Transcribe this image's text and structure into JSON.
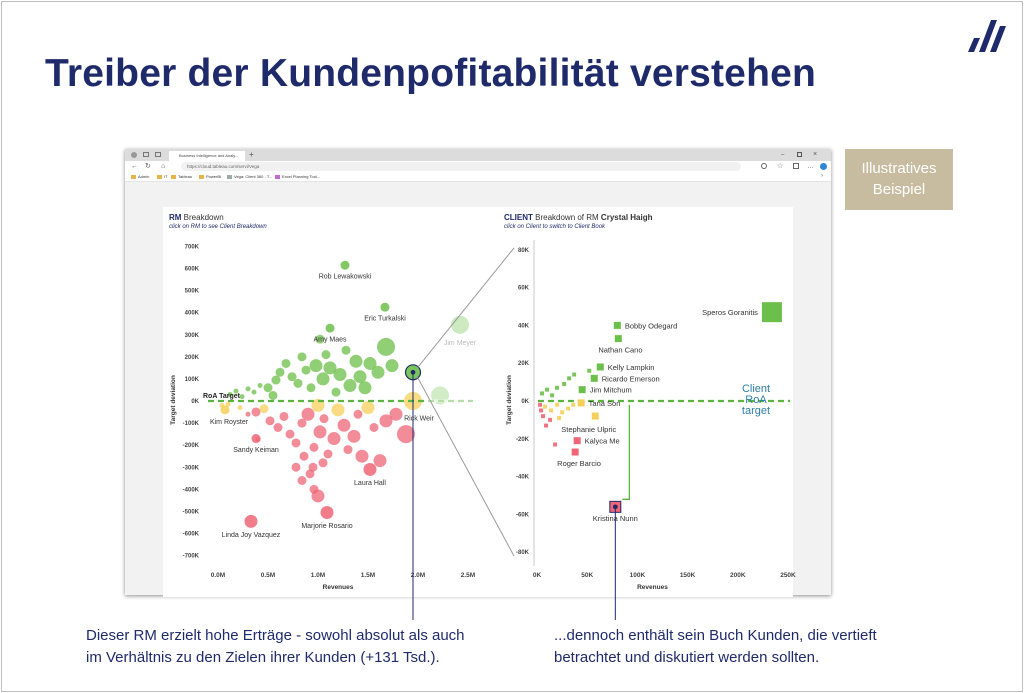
{
  "title": "Treiber der Kundenpofitabilität verstehen",
  "badge": {
    "line1": "Illustratives",
    "line2": "Beispiel"
  },
  "browser": {
    "tab_title": "Business Intelligence and Analy...",
    "url": "https://cloud.tableau.com/servi/Vega",
    "bookmarks": [
      "Admin",
      "IT",
      "Tableau",
      "PowerBI",
      "Vega: Client 360 - T...",
      "Excel Planning Tool..."
    ]
  },
  "captions": {
    "left": [
      "Dieser RM erzielt hohe Erträge - sowohl absolut als auch",
      "im Verhältnis zu den Zielen ihrer Kunden (+131 Tsd.)."
    ],
    "right": [
      "...dennoch enthält sein Buch Kunden, die vertieft",
      "betrachtet und diskutiert werden sollten."
    ]
  },
  "colors": {
    "green": "#6cbf4a",
    "yellow": "#f5cf5a",
    "red": "#ee6677",
    "navy": "#1f2a6b",
    "target": "#5db33f",
    "client_label": "#2e7fa6"
  },
  "chart_data": [
    {
      "type": "scatter",
      "title_bold": "RM",
      "title_rest": " Breakdown",
      "subtitle": "click on RM to see Client Breakdown",
      "xlabel": "Revenues",
      "ylabel": "Target deviation",
      "xlim": [
        -0.12,
        2.6
      ],
      "ylim": [
        -720,
        720
      ],
      "xticks": [
        {
          "v": 0,
          "t": "0.0M"
        },
        {
          "v": 0.5,
          "t": "0.5M"
        },
        {
          "v": 1.0,
          "t": "1.0M"
        },
        {
          "v": 1.5,
          "t": "1.5M"
        },
        {
          "v": 2.0,
          "t": "2.0M"
        },
        {
          "v": 2.5,
          "t": "2.5M"
        }
      ],
      "yticks": [
        {
          "v": 700,
          "t": "700K"
        },
        {
          "v": 600,
          "t": "600K"
        },
        {
          "v": 500,
          "t": "500K"
        },
        {
          "v": 400,
          "t": "400K"
        },
        {
          "v": 300,
          "t": "300K"
        },
        {
          "v": 200,
          "t": "200K"
        },
        {
          "v": 100,
          "t": "100K"
        },
        {
          "v": 0,
          "t": "0K"
        },
        {
          "v": -100,
          "t": "-100K"
        },
        {
          "v": -200,
          "t": "-200K"
        },
        {
          "v": -300,
          "t": "-300K"
        },
        {
          "v": -400,
          "t": "-400K"
        },
        {
          "v": -500,
          "t": "-500K"
        },
        {
          "v": -600,
          "t": "-600K"
        },
        {
          "v": -700,
          "t": "-700K"
        }
      ],
      "target_line": {
        "y": 0,
        "label": "RoA Target"
      },
      "labeled_points": [
        {
          "name": "Rob Lewakowski",
          "x": 1.27,
          "y": 615,
          "size": 1
        },
        {
          "name": "Eric Turkalski",
          "x": 1.67,
          "y": 425,
          "size": 1
        },
        {
          "name": "Amy Maes",
          "x": 1.12,
          "y": 330,
          "size": 1
        },
        {
          "name": "Jim Meyer",
          "x": 2.42,
          "y": 345,
          "size": 3,
          "faded": true
        },
        {
          "name": "Rick Weir",
          "x": 1.95,
          "y": 130,
          "size": 2,
          "selected": true
        },
        {
          "name": "Kim Royster",
          "x": 0.07,
          "y": -40,
          "size": 1
        },
        {
          "name": "Sandy Keiman",
          "x": 0.38,
          "y": -170,
          "size": 1
        },
        {
          "name": "Laura Hall",
          "x": 1.52,
          "y": -310,
          "size": 2
        },
        {
          "name": "Marjorie Rosario",
          "x": 1.09,
          "y": -505,
          "size": 2
        },
        {
          "name": "Linda Joy Vazquez",
          "x": 0.33,
          "y": -545,
          "size": 2
        }
      ],
      "points": [
        {
          "x": 0.12,
          "y": 30,
          "s": 0
        },
        {
          "x": 0.18,
          "y": 45,
          "s": 0
        },
        {
          "x": 0.24,
          "y": 20,
          "s": 0
        },
        {
          "x": 0.3,
          "y": 55,
          "s": 0
        },
        {
          "x": 0.36,
          "y": 40,
          "s": 0
        },
        {
          "x": 0.42,
          "y": 70,
          "s": 0
        },
        {
          "x": 0.5,
          "y": 60,
          "s": 1
        },
        {
          "x": 0.58,
          "y": 95,
          "s": 1
        },
        {
          "x": 0.62,
          "y": 130,
          "s": 1
        },
        {
          "x": 0.68,
          "y": 170,
          "s": 1
        },
        {
          "x": 0.74,
          "y": 110,
          "s": 1
        },
        {
          "x": 0.8,
          "y": 80,
          "s": 1
        },
        {
          "x": 0.84,
          "y": 200,
          "s": 1
        },
        {
          "x": 0.88,
          "y": 140,
          "s": 1
        },
        {
          "x": 0.93,
          "y": 60,
          "s": 1
        },
        {
          "x": 0.98,
          "y": 160,
          "s": 2
        },
        {
          "x": 1.05,
          "y": 100,
          "s": 2
        },
        {
          "x": 1.08,
          "y": 210,
          "s": 1
        },
        {
          "x": 1.12,
          "y": 150,
          "s": 2
        },
        {
          "x": 1.18,
          "y": 40,
          "s": 1
        },
        {
          "x": 1.22,
          "y": 120,
          "s": 2
        },
        {
          "x": 1.28,
          "y": 230,
          "s": 1
        },
        {
          "x": 1.32,
          "y": 70,
          "s": 2
        },
        {
          "x": 1.38,
          "y": 180,
          "s": 2
        },
        {
          "x": 1.42,
          "y": 110,
          "s": 2
        },
        {
          "x": 1.47,
          "y": 60,
          "s": 2
        },
        {
          "x": 1.52,
          "y": 170,
          "s": 2
        },
        {
          "x": 1.6,
          "y": 130,
          "s": 2
        },
        {
          "x": 1.68,
          "y": 245,
          "s": 3
        },
        {
          "x": 1.74,
          "y": 160,
          "s": 2
        },
        {
          "x": 1.02,
          "y": 280,
          "s": 1
        },
        {
          "x": 0.55,
          "y": 25,
          "s": 1
        },
        {
          "x": 0.22,
          "y": -30,
          "s": 0
        },
        {
          "x": 0.3,
          "y": -60,
          "s": 0
        },
        {
          "x": 0.38,
          "y": -50,
          "s": 1
        },
        {
          "x": 0.46,
          "y": -35,
          "s": 1
        },
        {
          "x": 0.52,
          "y": -90,
          "s": 1
        },
        {
          "x": 0.6,
          "y": -120,
          "s": 1
        },
        {
          "x": 0.66,
          "y": -70,
          "s": 1
        },
        {
          "x": 0.72,
          "y": -150,
          "s": 1
        },
        {
          "x": 0.78,
          "y": -190,
          "s": 1
        },
        {
          "x": 0.84,
          "y": -100,
          "s": 1
        },
        {
          "x": 0.9,
          "y": -60,
          "s": 2
        },
        {
          "x": 0.96,
          "y": -210,
          "s": 1
        },
        {
          "x": 1.02,
          "y": -140,
          "s": 2
        },
        {
          "x": 1.06,
          "y": -80,
          "s": 1
        },
        {
          "x": 1.1,
          "y": -240,
          "s": 1
        },
        {
          "x": 1.16,
          "y": -170,
          "s": 2
        },
        {
          "x": 1.2,
          "y": -40,
          "s": 2
        },
        {
          "x": 1.26,
          "y": -110,
          "s": 2
        },
        {
          "x": 1.3,
          "y": -220,
          "s": 1
        },
        {
          "x": 1.36,
          "y": -160,
          "s": 2
        },
        {
          "x": 1.4,
          "y": -60,
          "s": 1
        },
        {
          "x": 1.44,
          "y": -250,
          "s": 2
        },
        {
          "x": 1.5,
          "y": -30,
          "s": 2
        },
        {
          "x": 1.56,
          "y": -120,
          "s": 1
        },
        {
          "x": 1.62,
          "y": -270,
          "s": 2
        },
        {
          "x": 1.68,
          "y": -90,
          "s": 2
        },
        {
          "x": 1.78,
          "y": -60,
          "s": 2
        },
        {
          "x": 1.88,
          "y": -150,
          "s": 3
        },
        {
          "x": 1.95,
          "y": 0,
          "s": 3
        },
        {
          "x": 2.22,
          "y": 25,
          "s": 3,
          "faded": true
        },
        {
          "x": 0.95,
          "y": -300,
          "s": 1
        },
        {
          "x": 1.0,
          "y": -20,
          "s": 2
        },
        {
          "x": 0.04,
          "y": -20,
          "s": 0
        },
        {
          "x": 0.1,
          "y": -15,
          "s": 0
        },
        {
          "x": 0.4,
          "y": -175,
          "s": 0
        },
        {
          "x": 0.78,
          "y": -300,
          "s": 1
        },
        {
          "x": 0.84,
          "y": -360,
          "s": 1
        },
        {
          "x": 0.92,
          "y": -330,
          "s": 1
        },
        {
          "x": 0.96,
          "y": -400,
          "s": 1
        },
        {
          "x": 1.0,
          "y": -430,
          "s": 2
        },
        {
          "x": 0.86,
          "y": -250,
          "s": 1
        },
        {
          "x": 1.05,
          "y": -280,
          "s": 1
        }
      ]
    },
    {
      "type": "scatter",
      "title_bold": "CLIENT",
      "title_rest": " Breakdown of RM ",
      "title_name": "Crystal Haigh",
      "subtitle": "click on Client to switch to Client Book",
      "xlabel": "Revenues",
      "ylabel": "Target deviation",
      "xlim": [
        -3,
        252
      ],
      "ylim": [
        -82,
        82
      ],
      "xticks": [
        {
          "v": 0,
          "t": "0K"
        },
        {
          "v": 50,
          "t": "50K"
        },
        {
          "v": 100,
          "t": "100K"
        },
        {
          "v": 150,
          "t": "150K"
        },
        {
          "v": 200,
          "t": "200K"
        },
        {
          "v": 250,
          "t": "250K"
        }
      ],
      "yticks": [
        {
          "v": 80,
          "t": "80K"
        },
        {
          "v": 60,
          "t": "60K"
        },
        {
          "v": 40,
          "t": "40K"
        },
        {
          "v": 20,
          "t": "20K"
        },
        {
          "v": 0,
          "t": "0K"
        },
        {
          "v": -20,
          "t": "-20K"
        },
        {
          "v": -40,
          "t": "-40K"
        },
        {
          "v": -60,
          "t": "-60K"
        },
        {
          "v": -80,
          "t": "-80K"
        }
      ],
      "target_line": {
        "y": 0,
        "label_lines": [
          "Client",
          "RoA",
          "target"
        ]
      },
      "labeled_points": [
        {
          "name": "Speros Goranitis",
          "x": 234,
          "y": 47,
          "size": 3
        },
        {
          "name": "Bobby Odegard",
          "x": 80,
          "y": 40,
          "size": 1
        },
        {
          "name": "Nathan Cano",
          "x": 81,
          "y": 33,
          "size": 1
        },
        {
          "name": "Kelly Lampkin",
          "x": 63,
          "y": 18,
          "size": 1
        },
        {
          "name": "Ricardo Emerson",
          "x": 57,
          "y": 12,
          "size": 1
        },
        {
          "name": "Jim Mitchum",
          "x": 45,
          "y": 6,
          "size": 1
        },
        {
          "name": "Tana Son",
          "x": 44,
          "y": -1,
          "size": 1
        },
        {
          "name": "Stephanie Ulpric",
          "x": 58,
          "y": -8,
          "size": 1
        },
        {
          "name": "Kalyca Me",
          "x": 40,
          "y": -21,
          "size": 1
        },
        {
          "name": "Roger Barcio",
          "x": 38,
          "y": -27,
          "size": 1
        },
        {
          "name": "Kristina Nunn",
          "x": 78,
          "y": -56,
          "size": 2,
          "selected": true
        }
      ],
      "points": [
        {
          "x": 5,
          "y": 4,
          "c": "green"
        },
        {
          "x": 10,
          "y": 6,
          "c": "green"
        },
        {
          "x": 15,
          "y": 3,
          "c": "green"
        },
        {
          "x": 20,
          "y": 7,
          "c": "green"
        },
        {
          "x": 27,
          "y": 9,
          "c": "green"
        },
        {
          "x": 32,
          "y": 12,
          "c": "green"
        },
        {
          "x": 37,
          "y": 14,
          "c": "green"
        },
        {
          "x": 52,
          "y": 16,
          "c": "green"
        },
        {
          "x": 8,
          "y": -3,
          "c": "yellow"
        },
        {
          "x": 14,
          "y": -5,
          "c": "yellow"
        },
        {
          "x": 20,
          "y": -2,
          "c": "yellow"
        },
        {
          "x": 25,
          "y": -6,
          "c": "yellow"
        },
        {
          "x": 31,
          "y": -4,
          "c": "yellow"
        },
        {
          "x": 36,
          "y": -2,
          "c": "yellow"
        },
        {
          "x": 22,
          "y": -9,
          "c": "yellow"
        },
        {
          "x": 3,
          "y": -2,
          "c": "red"
        },
        {
          "x": 6,
          "y": -8,
          "c": "red"
        },
        {
          "x": 9,
          "y": -13,
          "c": "red"
        },
        {
          "x": 13,
          "y": -10,
          "c": "red"
        },
        {
          "x": 18,
          "y": -23,
          "c": "red"
        },
        {
          "x": 4,
          "y": -5,
          "c": "red"
        }
      ]
    }
  ]
}
